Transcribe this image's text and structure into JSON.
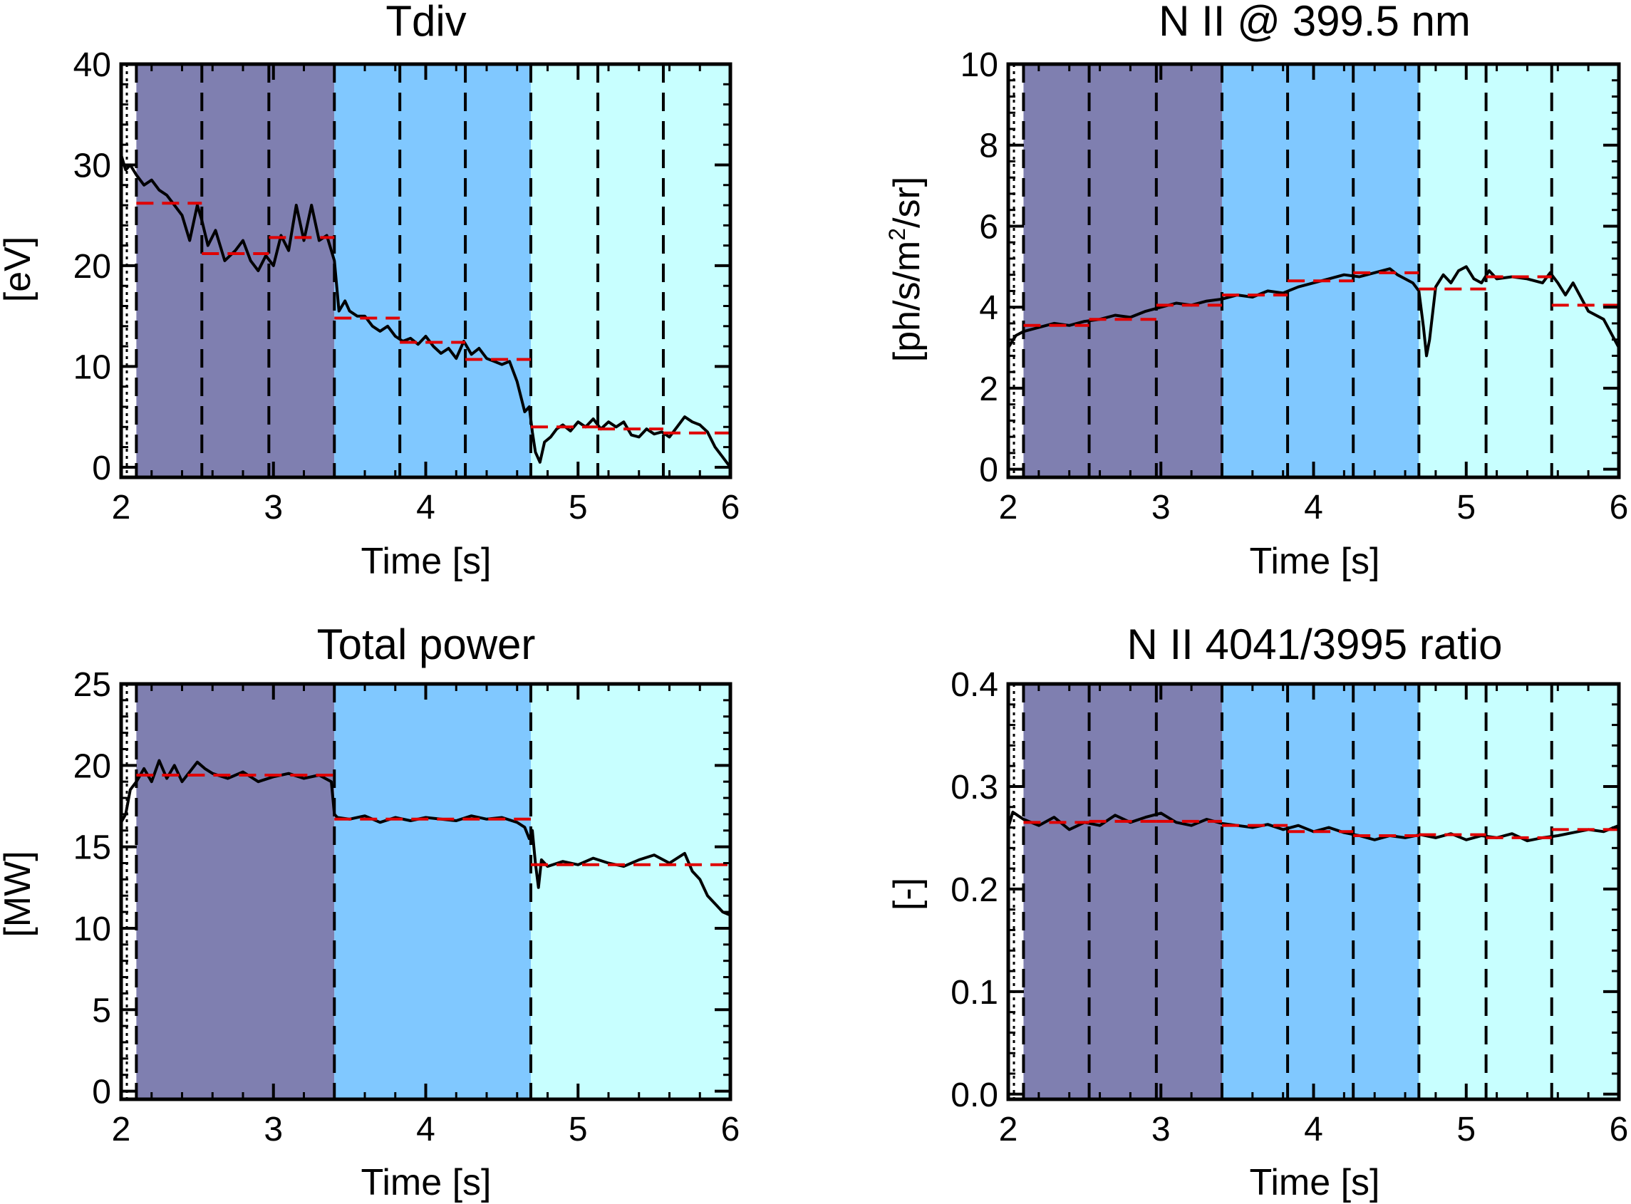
{
  "colors": {
    "band1": "#7f7fb0",
    "band2": "#80c8ff",
    "band3": "#c8ffff",
    "signal": "#000000",
    "step": "#e00000",
    "divider": "#000000"
  },
  "chart_data": [
    {
      "type": "line",
      "title": "Tdiv",
      "xlabel": "Time [s]",
      "ylabel": "[eV]",
      "xlim": [
        2,
        6
      ],
      "ylim": [
        -1,
        40
      ],
      "xticks": [
        2,
        3,
        4,
        5,
        6
      ],
      "yticks": [
        0,
        10,
        20,
        30,
        40
      ],
      "tick_decimals": 0,
      "shaded_bands": [
        {
          "x0": 2.1,
          "x1": 3.4,
          "color": "band1"
        },
        {
          "x0": 3.4,
          "x1": 4.69,
          "color": "band2"
        },
        {
          "x0": 4.69,
          "x1": 6.0,
          "color": "band3"
        }
      ],
      "dashed_lines_x": [
        2.1,
        2.53,
        2.97,
        3.4,
        3.83,
        4.26,
        4.69,
        5.13,
        5.56
      ],
      "series": [
        {
          "style": "signal",
          "x": [
            2.0,
            2.03,
            2.06,
            2.1,
            2.15,
            2.2,
            2.25,
            2.3,
            2.35,
            2.4,
            2.45,
            2.5,
            2.53,
            2.57,
            2.62,
            2.68,
            2.75,
            2.8,
            2.85,
            2.9,
            2.95,
            3.0,
            3.05,
            3.1,
            3.15,
            3.2,
            3.25,
            3.3,
            3.35,
            3.4,
            3.43,
            3.47,
            3.5,
            3.55,
            3.6,
            3.65,
            3.7,
            3.75,
            3.8,
            3.85,
            3.9,
            3.95,
            4.0,
            4.05,
            4.1,
            4.15,
            4.2,
            4.25,
            4.3,
            4.35,
            4.4,
            4.45,
            4.5,
            4.55,
            4.6,
            4.65,
            4.68,
            4.7,
            4.72,
            4.75,
            4.78,
            4.82,
            4.86,
            4.9,
            4.95,
            5.0,
            5.05,
            5.1,
            5.15,
            5.2,
            5.25,
            5.3,
            5.35,
            5.4,
            5.45,
            5.5,
            5.55,
            5.6,
            5.65,
            5.7,
            5.75,
            5.8,
            5.85,
            5.9,
            5.95,
            6.0
          ],
          "y": [
            31,
            29.5,
            30,
            29,
            28,
            28.5,
            27.5,
            27,
            26,
            25,
            22.5,
            26,
            24.5,
            22,
            23.5,
            20.5,
            21.5,
            22.5,
            20.5,
            19.5,
            21,
            20,
            23,
            21.5,
            26,
            22.5,
            26,
            22.5,
            23,
            20.5,
            15.5,
            16.5,
            15.5,
            15,
            15,
            14,
            13.5,
            14,
            13,
            12.5,
            12.8,
            12.2,
            13,
            12,
            11.3,
            11.8,
            10.8,
            12.5,
            11.2,
            11.8,
            10.8,
            10.5,
            10.2,
            10.5,
            8.5,
            5.5,
            6,
            3.5,
            1.5,
            0.5,
            2.5,
            3,
            3.8,
            4.2,
            3.6,
            4.5,
            4,
            4.8,
            3.8,
            4.5,
            4,
            4.5,
            3.2,
            3,
            3.8,
            3.3,
            3.5,
            3,
            4,
            5,
            4.5,
            4.2,
            3.5,
            2,
            1,
            0
          ]
        },
        {
          "style": "step",
          "segments": [
            [
              2.1,
              2.53,
              26.2
            ],
            [
              2.53,
              2.97,
              21.2
            ],
            [
              2.97,
              3.4,
              22.8
            ],
            [
              3.4,
              3.83,
              14.8
            ],
            [
              3.83,
              4.26,
              12.4
            ],
            [
              4.26,
              4.69,
              10.7
            ],
            [
              4.69,
              5.13,
              4.0
            ],
            [
              5.13,
              5.56,
              3.8
            ],
            [
              5.56,
              6.0,
              3.4
            ]
          ]
        }
      ]
    },
    {
      "type": "line",
      "title": "N II @ 399.5 nm",
      "xlabel": "Time [s]",
      "ylabel": "[ph/s/m²/sr]",
      "xlim": [
        2,
        6
      ],
      "ylim": [
        -0.2,
        10
      ],
      "xticks": [
        2,
        3,
        4,
        5,
        6
      ],
      "yticks": [
        0,
        2,
        4,
        6,
        8,
        10
      ],
      "tick_decimals": 0,
      "shaded_bands": [
        {
          "x0": 2.1,
          "x1": 3.4,
          "color": "band1"
        },
        {
          "x0": 3.4,
          "x1": 4.69,
          "color": "band2"
        },
        {
          "x0": 4.69,
          "x1": 6.0,
          "color": "band3"
        }
      ],
      "dashed_lines_x": [
        2.1,
        2.53,
        2.97,
        3.4,
        3.83,
        4.26,
        4.69,
        5.13,
        5.56
      ],
      "series": [
        {
          "style": "signal",
          "x": [
            2.0,
            2.05,
            2.1,
            2.2,
            2.3,
            2.4,
            2.5,
            2.6,
            2.7,
            2.8,
            2.9,
            3.0,
            3.1,
            3.2,
            3.3,
            3.4,
            3.5,
            3.6,
            3.7,
            3.8,
            3.9,
            4.0,
            4.1,
            4.2,
            4.3,
            4.4,
            4.5,
            4.55,
            4.6,
            4.65,
            4.69,
            4.72,
            4.74,
            4.76,
            4.8,
            4.85,
            4.9,
            4.95,
            5.0,
            5.05,
            5.1,
            5.15,
            5.2,
            5.3,
            5.4,
            5.5,
            5.55,
            5.6,
            5.65,
            5.7,
            5.8,
            5.9,
            6.0
          ],
          "y": [
            3.0,
            3.3,
            3.4,
            3.5,
            3.6,
            3.55,
            3.65,
            3.7,
            3.8,
            3.75,
            3.9,
            4.0,
            4.1,
            4.05,
            4.15,
            4.2,
            4.3,
            4.25,
            4.4,
            4.35,
            4.5,
            4.6,
            4.7,
            4.8,
            4.75,
            4.85,
            4.95,
            4.8,
            4.7,
            4.6,
            4.4,
            3.5,
            2.8,
            3.2,
            4.5,
            4.8,
            4.6,
            4.9,
            5.0,
            4.7,
            4.6,
            4.9,
            4.7,
            4.75,
            4.7,
            4.6,
            4.85,
            4.6,
            4.3,
            4.6,
            3.9,
            3.7,
            3.0
          ]
        },
        {
          "style": "step",
          "segments": [
            [
              2.1,
              2.53,
              3.55
            ],
            [
              2.53,
              2.97,
              3.7
            ],
            [
              2.97,
              3.4,
              4.05
            ],
            [
              3.4,
              3.83,
              4.3
            ],
            [
              3.83,
              4.26,
              4.65
            ],
            [
              4.26,
              4.69,
              4.85
            ],
            [
              4.69,
              5.13,
              4.45
            ],
            [
              5.13,
              5.56,
              4.75
            ],
            [
              5.56,
              6.0,
              4.05
            ]
          ]
        }
      ]
    },
    {
      "type": "line",
      "title": "Total power",
      "xlabel": "Time [s]",
      "ylabel": "[MW]",
      "xlim": [
        2,
        6
      ],
      "ylim": [
        -0.5,
        25
      ],
      "xticks": [
        2,
        3,
        4,
        5,
        6
      ],
      "yticks": [
        0,
        5,
        10,
        15,
        20,
        25
      ],
      "tick_decimals": 0,
      "shaded_bands": [
        {
          "x0": 2.1,
          "x1": 3.4,
          "color": "band1"
        },
        {
          "x0": 3.4,
          "x1": 4.69,
          "color": "band2"
        },
        {
          "x0": 4.69,
          "x1": 6.0,
          "color": "band3"
        }
      ],
      "dashed_lines_x": [
        2.1,
        3.4,
        4.69
      ],
      "series": [
        {
          "style": "signal",
          "x": [
            2.0,
            2.03,
            2.06,
            2.1,
            2.15,
            2.2,
            2.25,
            2.3,
            2.35,
            2.4,
            2.45,
            2.5,
            2.55,
            2.6,
            2.7,
            2.8,
            2.9,
            3.0,
            3.1,
            3.2,
            3.3,
            3.38,
            3.4,
            3.42,
            3.5,
            3.6,
            3.7,
            3.8,
            3.9,
            4.0,
            4.1,
            4.2,
            4.3,
            4.4,
            4.5,
            4.6,
            4.65,
            4.68,
            4.7,
            4.72,
            4.74,
            4.76,
            4.8,
            4.9,
            5.0,
            5.1,
            5.2,
            5.3,
            5.4,
            5.5,
            5.6,
            5.7,
            5.75,
            5.8,
            5.85,
            5.9,
            5.95,
            6.0
          ],
          "y": [
            16.5,
            17.0,
            18.5,
            19.0,
            19.8,
            19.0,
            20.3,
            19.2,
            20.0,
            19.0,
            19.6,
            20.2,
            19.8,
            19.5,
            19.2,
            19.6,
            19.0,
            19.3,
            19.5,
            19.2,
            19.4,
            19.0,
            17.0,
            16.8,
            16.7,
            16.9,
            16.5,
            16.8,
            16.6,
            16.8,
            16.7,
            16.6,
            16.9,
            16.7,
            16.8,
            16.5,
            16.2,
            15.5,
            16.0,
            14.0,
            12.5,
            14.2,
            13.8,
            14.1,
            13.9,
            14.3,
            14.0,
            13.8,
            14.2,
            14.5,
            14.0,
            14.6,
            13.5,
            13.0,
            12.0,
            11.5,
            11.0,
            10.8
          ]
        },
        {
          "style": "step",
          "segments": [
            [
              2.1,
              3.4,
              19.4
            ],
            [
              3.4,
              4.69,
              16.7
            ],
            [
              4.69,
              6.0,
              13.9
            ]
          ]
        }
      ]
    },
    {
      "type": "line",
      "title": "N II 4041/3995 ratio",
      "xlabel": "Time [s]",
      "ylabel": "[-]",
      "xlim": [
        2,
        6
      ],
      "ylim": [
        -0.005,
        0.4
      ],
      "xticks": [
        2,
        3,
        4,
        5,
        6
      ],
      "yticks": [
        0.0,
        0.1,
        0.2,
        0.3,
        0.4
      ],
      "tick_decimals": 1,
      "shaded_bands": [
        {
          "x0": 2.1,
          "x1": 3.4,
          "color": "band1"
        },
        {
          "x0": 3.4,
          "x1": 4.69,
          "color": "band2"
        },
        {
          "x0": 4.69,
          "x1": 6.0,
          "color": "band3"
        }
      ],
      "dashed_lines_x": [
        2.1,
        2.53,
        2.97,
        3.4,
        3.83,
        4.26,
        4.69,
        5.13,
        5.56
      ],
      "series": [
        {
          "style": "signal",
          "x": [
            2.0,
            2.03,
            2.06,
            2.1,
            2.2,
            2.3,
            2.4,
            2.5,
            2.6,
            2.7,
            2.8,
            2.9,
            3.0,
            3.1,
            3.2,
            3.3,
            3.4,
            3.5,
            3.6,
            3.7,
            3.8,
            3.9,
            4.0,
            4.1,
            4.2,
            4.3,
            4.4,
            4.5,
            4.6,
            4.7,
            4.8,
            4.9,
            5.0,
            5.1,
            5.2,
            5.3,
            5.4,
            5.5,
            5.6,
            5.7,
            5.8,
            5.9,
            6.0
          ],
          "y": [
            0.26,
            0.275,
            0.272,
            0.268,
            0.262,
            0.27,
            0.258,
            0.265,
            0.262,
            0.272,
            0.265,
            0.27,
            0.274,
            0.265,
            0.262,
            0.268,
            0.264,
            0.262,
            0.26,
            0.263,
            0.258,
            0.262,
            0.256,
            0.26,
            0.255,
            0.252,
            0.248,
            0.252,
            0.25,
            0.253,
            0.25,
            0.254,
            0.248,
            0.252,
            0.25,
            0.254,
            0.247,
            0.25,
            0.252,
            0.255,
            0.258,
            0.256,
            0.262
          ]
        },
        {
          "style": "step",
          "segments": [
            [
              2.1,
              2.53,
              0.265
            ],
            [
              2.53,
              2.97,
              0.266
            ],
            [
              2.97,
              3.4,
              0.266
            ],
            [
              3.4,
              3.83,
              0.262
            ],
            [
              3.83,
              4.26,
              0.256
            ],
            [
              4.26,
              4.69,
              0.252
            ],
            [
              4.69,
              5.13,
              0.253
            ],
            [
              5.13,
              5.56,
              0.25
            ],
            [
              5.56,
              6.0,
              0.258
            ]
          ]
        }
      ]
    }
  ]
}
